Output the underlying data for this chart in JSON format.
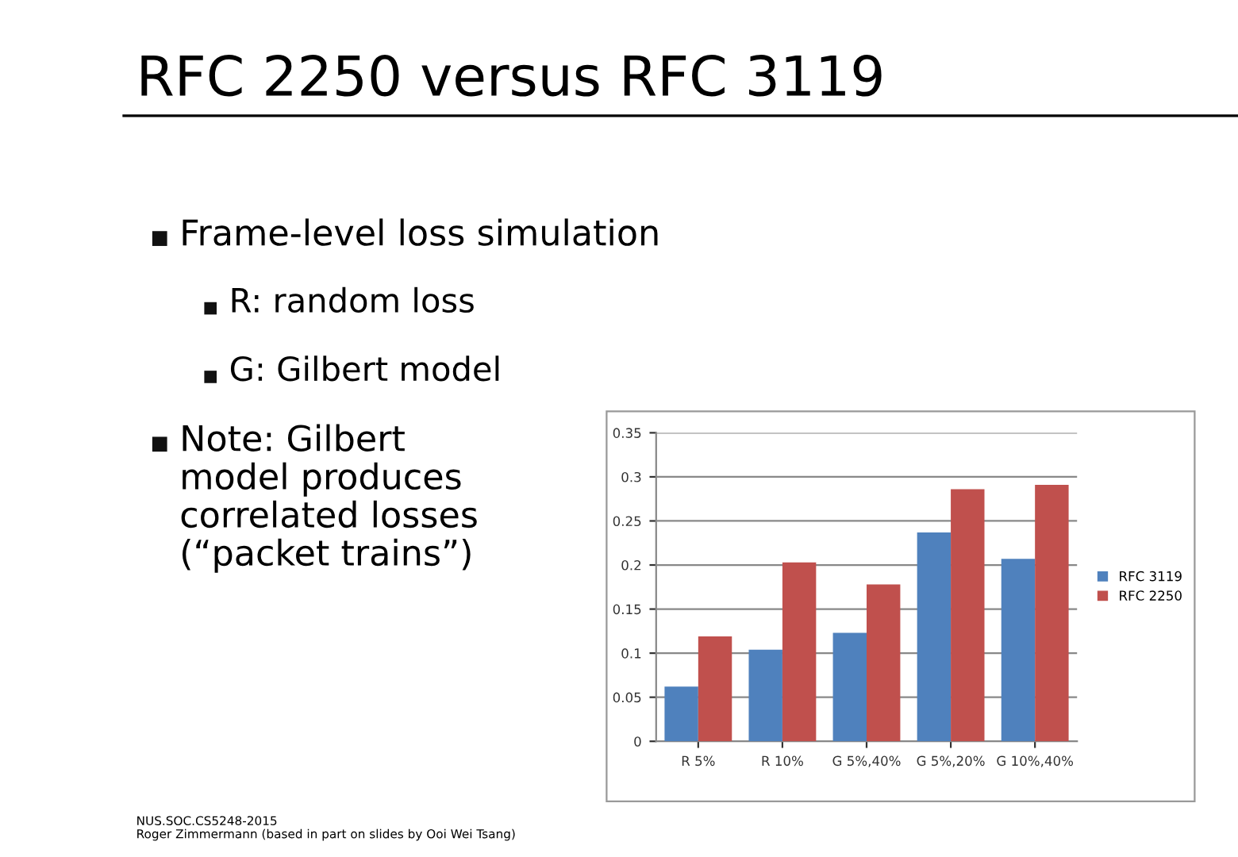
{
  "chart_data": {
    "type": "bar",
    "title": "RFC 2250 versus RFC 3119",
    "categories": [
      "R 5%",
      "R 10%",
      "G 5%,40%",
      "G 5%,20%",
      "G 10%,40%"
    ],
    "series": [
      {
        "name": "RFC 3119",
        "color": "#4f81bd",
        "values": [
          0.062,
          0.104,
          0.123,
          0.237,
          0.207
        ]
      },
      {
        "name": "RFC 2250",
        "color": "#c0504d",
        "values": [
          0.119,
          0.203,
          0.178,
          0.286,
          0.291
        ]
      }
    ],
    "ylim": [
      0,
      0.35
    ],
    "yticks": [
      0,
      0.05,
      0.1,
      0.15,
      0.2,
      0.25,
      0.3,
      0.35
    ],
    "grid": "y",
    "legend": "right",
    "annotations": [
      "Frame-level loss simulation",
      "R: random loss",
      "G: Gilbert model",
      "Note: Gilbert\nmodel produces\ncorrelated losses\n(“packet trains”)",
      "NUS.SOC.CS5248-2015\nRoger Zimmermann (based in part on slides by Ooi Wei Tsang)"
    ]
  }
}
